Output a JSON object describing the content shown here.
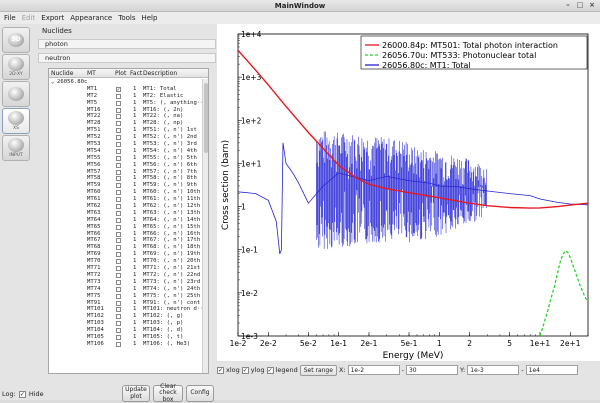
{
  "window": {
    "title": "MainWindow"
  },
  "menu": [
    {
      "label": "File",
      "enabled": true
    },
    {
      "label": "Edit",
      "enabled": false
    },
    {
      "label": "Export",
      "enabled": true
    },
    {
      "label": "Appearance",
      "enabled": true
    },
    {
      "label": "Tools",
      "enabled": true
    },
    {
      "label": "Help",
      "enabled": true
    }
  ],
  "toolbar": [
    {
      "name": "3d",
      "glyph": "3D",
      "caption": ""
    },
    {
      "name": "csg",
      "glyph": "",
      "caption": "2D-XY"
    },
    {
      "name": "geometry",
      "glyph": "",
      "caption": ""
    },
    {
      "name": "xs",
      "glyph": "",
      "caption": "XS"
    },
    {
      "name": "input",
      "glyph": "",
      "caption": "INPUT"
    }
  ],
  "nuclides": {
    "label": "Nuclides",
    "groups": [
      "photon",
      "neutron"
    ],
    "columns": [
      "Nuclide",
      "MT",
      "Plot",
      "Fact",
      "Description"
    ],
    "root": "26056.80c",
    "rows": [
      [
        "MT1",
        "1",
        "MT1: Total",
        true
      ],
      [
        "MT2",
        "1",
        "MT2: Elastic",
        false
      ],
      [
        "MT5",
        "1",
        "MT5: (, anything··",
        false
      ],
      [
        "MT16",
        "1",
        "MT16: (, 2n)",
        false
      ],
      [
        "MT22",
        "1",
        "MT22: (, na)",
        false
      ],
      [
        "MT28",
        "1",
        "MT28: (, np)",
        false
      ],
      [
        "MT51",
        "1",
        "MT51: (, n') 1st",
        false
      ],
      [
        "MT52",
        "1",
        "MT52: (, n') 2nd",
        false
      ],
      [
        "MT53",
        "1",
        "MT53: (, n') 3rd",
        false
      ],
      [
        "MT54",
        "1",
        "MT54: (, n') 4th",
        false
      ],
      [
        "MT55",
        "1",
        "MT55: (, n') 5th",
        false
      ],
      [
        "MT56",
        "1",
        "MT56: (, n') 6th",
        false
      ],
      [
        "MT57",
        "1",
        "MT57: (, n') 7th",
        false
      ],
      [
        "MT58",
        "1",
        "MT58: (, n') 8th",
        false
      ],
      [
        "MT59",
        "1",
        "MT59: (, n') 9th",
        false
      ],
      [
        "MT60",
        "1",
        "MT60: (, n') 10th",
        false
      ],
      [
        "MT61",
        "1",
        "MT61: (, n') 11th",
        false
      ],
      [
        "MT62",
        "1",
        "MT62: (, n') 12th",
        false
      ],
      [
        "MT63",
        "1",
        "MT63: (, n') 13th",
        false
      ],
      [
        "MT64",
        "1",
        "MT64: (, n') 14th",
        false
      ],
      [
        "MT65",
        "1",
        "MT65: (, n') 15th",
        false
      ],
      [
        "MT66",
        "1",
        "MT66: (, n') 16th",
        false
      ],
      [
        "MT67",
        "1",
        "MT67: (, n') 17th",
        false
      ],
      [
        "MT68",
        "1",
        "MT68: (, n') 18th",
        false
      ],
      [
        "MT69",
        "1",
        "MT69: (, n') 19th",
        false
      ],
      [
        "MT70",
        "1",
        "MT70: (, n') 20th",
        false
      ],
      [
        "MT71",
        "1",
        "MT71: (, n') 21st",
        false
      ],
      [
        "MT72",
        "1",
        "MT72: (, n') 22nd",
        false
      ],
      [
        "MT73",
        "1",
        "MT73: (, n') 23rd",
        false
      ],
      [
        "MT74",
        "1",
        "MT74: (, n') 24th",
        false
      ],
      [
        "MT75",
        "1",
        "MT75: (, n') 25th",
        false
      ],
      [
        "MT91",
        "1",
        "MT91: (, n') cont",
        false
      ],
      [
        "MT101",
        "1",
        "MT101: neutron d··",
        false
      ],
      [
        "MT102",
        "1",
        "MT102: (, g)",
        false
      ],
      [
        "MT103",
        "1",
        "MT103: (, p)",
        false
      ],
      [
        "MT104",
        "1",
        "MT104: (, d)",
        false
      ],
      [
        "MT105",
        "1",
        "MT105: (, t)",
        false
      ],
      [
        "MT106",
        "1",
        "MT106: (, He3)",
        false
      ]
    ]
  },
  "buttons": {
    "update": "Update plot",
    "clear": "Clear check box",
    "config": "Config"
  },
  "plot": {
    "xlabel": "Energy (MeV)",
    "ylabel": "Cross section (barn)",
    "xticks": [
      "1e-2",
      "2e-2",
      "5e-2",
      "1e-1",
      "2e-1",
      "5e-1",
      "1",
      "2",
      "5",
      "1e+1",
      "2e+1"
    ],
    "yticks": [
      "1e+4",
      "1e+3",
      "1e+2",
      "1e+1",
      "1",
      "1e-1",
      "1e-2",
      "1e-3"
    ],
    "legend": [
      {
        "label": "26000.84p: MT501: Total photon interaction",
        "color": "#e8191e",
        "dash": "solid"
      },
      {
        "label": "26056.70u: MT533: Photonuclear total",
        "color": "#2bd12b",
        "dash": "dashed"
      },
      {
        "label": "26056.80c: MT1: Total",
        "color": "#2323d6",
        "dash": "solid"
      }
    ]
  },
  "chart_data": {
    "type": "line",
    "title": "",
    "xlabel": "Energy (MeV)",
    "ylabel": "Cross section (barn)",
    "xscale": "log",
    "yscale": "log",
    "xlim": [
      0.01,
      30
    ],
    "ylim": [
      0.001,
      10000
    ],
    "legend_position": "top-right",
    "series": [
      {
        "name": "26000.84p: MT501: Total photon interaction",
        "color": "#e8191e",
        "x": [
          0.01,
          0.015,
          0.02,
          0.03,
          0.05,
          0.08,
          0.1,
          0.15,
          0.2,
          0.3,
          0.5,
          0.8,
          1,
          1.5,
          2,
          3,
          5,
          8,
          10,
          15,
          20,
          30
        ],
        "y": [
          4200,
          1450,
          660,
          210,
          52,
          16,
          9.0,
          4.6,
          3.3,
          2.6,
          2.1,
          1.75,
          1.6,
          1.35,
          1.2,
          1.05,
          0.95,
          0.92,
          0.93,
          1.0,
          1.08,
          1.2
        ]
      },
      {
        "name": "26056.70u: MT533: Photonuclear total",
        "color": "#2bd12b",
        "x": [
          9.5,
          10,
          11,
          12,
          13,
          14,
          15,
          16,
          17,
          18,
          19,
          20,
          22,
          25,
          28,
          30
        ],
        "y": [
          0.0008,
          0.001,
          0.002,
          0.004,
          0.008,
          0.015,
          0.03,
          0.055,
          0.08,
          0.095,
          0.085,
          0.065,
          0.035,
          0.015,
          0.008,
          0.006
        ]
      },
      {
        "name": "26056.80c: MT1: Total",
        "color": "#2323d6",
        "x": [
          0.01,
          0.015,
          0.02,
          0.024,
          0.026,
          0.027,
          0.028,
          0.03,
          0.035,
          0.04,
          0.05,
          0.07,
          0.1,
          0.2,
          0.3,
          0.5,
          0.8,
          1,
          1.5,
          2,
          3,
          5,
          8,
          10,
          15,
          20,
          30
        ],
        "y": [
          2.2,
          2.0,
          1.4,
          0.45,
          0.08,
          0.1,
          30,
          10,
          6,
          3.5,
          1.2,
          3,
          6,
          4,
          5,
          4,
          3.5,
          3,
          2.9,
          2.6,
          2.3,
          2.0,
          1.8,
          1.5,
          1.25,
          1.15,
          1.1
        ]
      }
    ]
  },
  "controls": {
    "xlog": {
      "label": "xlog",
      "checked": true
    },
    "ylog": {
      "label": "ylog",
      "checked": true
    },
    "legend": {
      "label": "legend",
      "checked": true
    },
    "set_range": "Set range",
    "x_label": "X:",
    "x_min": "1e-2",
    "x_max": "30",
    "y_label": "Y:",
    "y_min": "1e-3",
    "y_max": "1e4"
  },
  "status": {
    "log_label": "Log:",
    "hide_label": "Hide",
    "hide_checked": true
  }
}
